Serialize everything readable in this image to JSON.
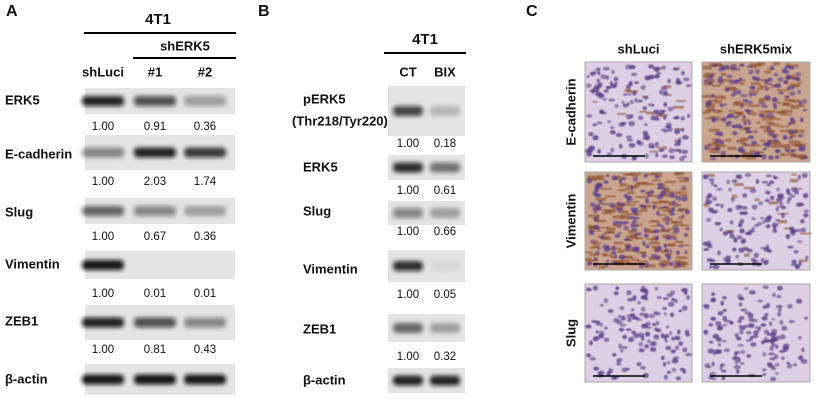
{
  "panels": [
    {
      "label": "A",
      "cell_line": "4T1",
      "group": "shERK5",
      "columns": [
        "shLuci",
        "#1",
        "#2"
      ],
      "rows": [
        {
          "protein": "ERK5",
          "values": [
            "1.00",
            "0.91",
            "0.36"
          ]
        },
        {
          "protein": "E-cadherin",
          "values": [
            "1.00",
            "2.03",
            "1.74"
          ]
        },
        {
          "protein": "Slug",
          "values": [
            "1.00",
            "0.67",
            "0.36"
          ]
        },
        {
          "protein": "Vimentin",
          "values": [
            "1.00",
            "0.01",
            "0.01"
          ]
        },
        {
          "protein": "ZEB1",
          "values": [
            "1.00",
            "0.81",
            "0.43"
          ]
        },
        {
          "protein": "β-actin"
        }
      ]
    },
    {
      "label": "B",
      "cell_line": "4T1",
      "columns": [
        "CT",
        "BIX"
      ],
      "rows": [
        {
          "protein": "pERK5",
          "site": "(Thr218/Tyr220)",
          "values": [
            "1.00",
            "0.18"
          ]
        },
        {
          "protein": "ERK5",
          "values": [
            "1.00",
            "0.61"
          ]
        },
        {
          "protein": "Slug",
          "values": [
            "1.00",
            "0.66"
          ]
        },
        {
          "protein": "Vimentin",
          "values": [
            "1.00",
            "0.05"
          ]
        },
        {
          "protein": "ZEB1",
          "values": [
            "1.00",
            "0.32"
          ]
        },
        {
          "protein": "β-actin"
        }
      ]
    },
    {
      "label": "C",
      "columns": [
        "shLuci",
        "shERK5mix"
      ],
      "rows": [
        "E-cadherin",
        "Vimentin",
        "Slug"
      ]
    }
  ]
}
